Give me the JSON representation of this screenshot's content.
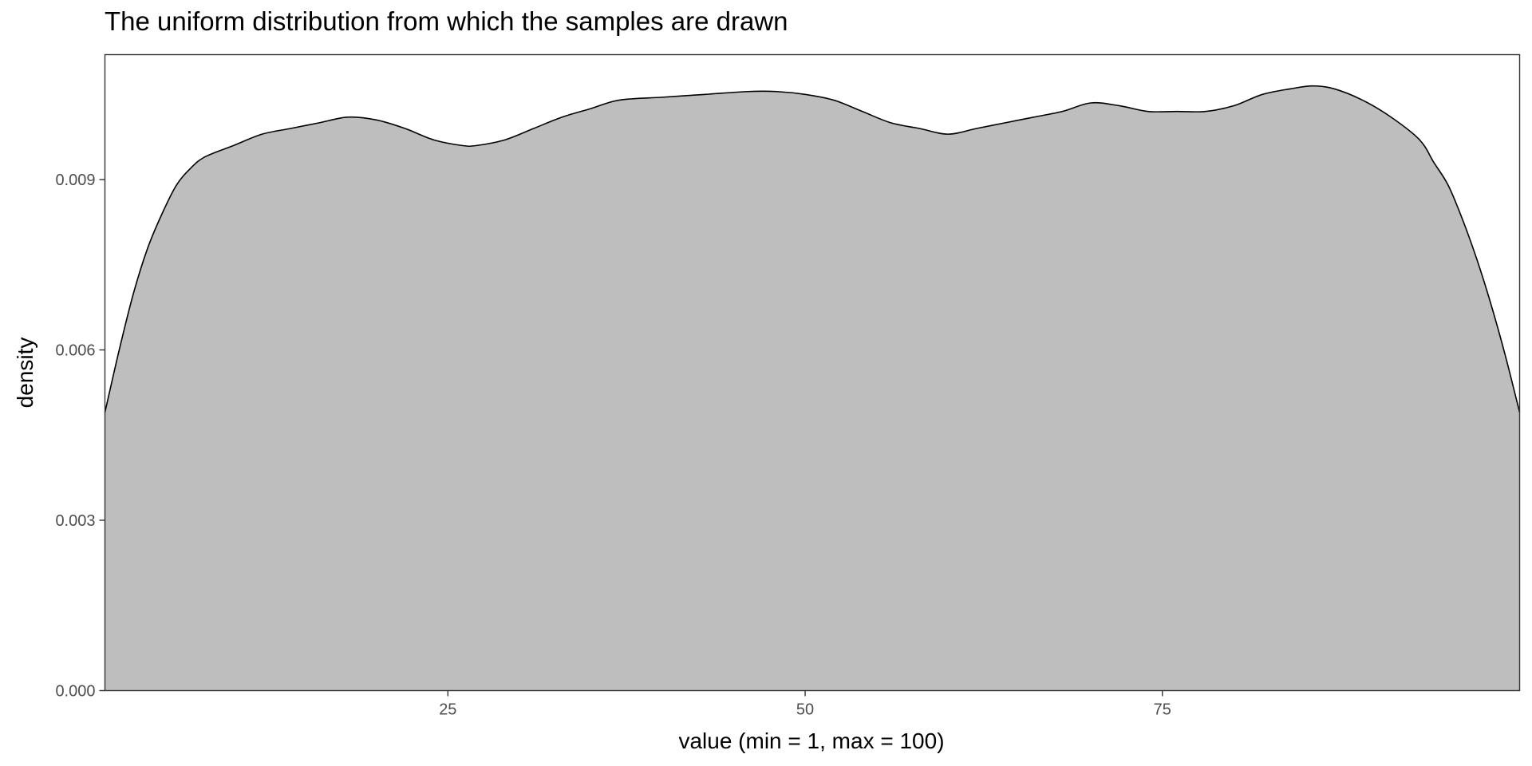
{
  "chart_data": {
    "type": "area",
    "title": "The uniform distribution from which the samples are drawn",
    "xlabel": "value (min = 1, max = 100)",
    "ylabel": "density",
    "xlim": [
      1,
      100
    ],
    "ylim": [
      0,
      0.0112
    ],
    "x_ticks": [
      25,
      50,
      75
    ],
    "x_tick_labels": [
      "25",
      "50",
      "75"
    ],
    "y_ticks": [
      0,
      0.003,
      0.006,
      0.009
    ],
    "y_tick_labels": [
      "0.000",
      "0.003",
      "0.006",
      "0.009"
    ],
    "grid": false,
    "series": [
      {
        "fill": "#bebebe",
        "stroke": "#000000",
        "x": [
          1,
          2,
          3,
          4,
          5,
          6,
          7,
          8,
          10,
          12,
          14,
          16,
          18,
          20,
          22,
          24,
          26,
          27,
          29,
          31,
          33,
          35,
          37,
          40,
          43,
          46,
          48,
          50,
          52,
          54,
          56,
          58,
          60,
          62,
          64,
          66,
          68,
          70,
          72,
          74,
          76,
          78,
          80,
          82,
          84,
          85.5,
          87,
          89,
          91,
          93,
          94,
          95,
          96,
          97,
          98,
          99,
          100
        ],
        "y": [
          0.0049,
          0.006,
          0.007,
          0.0078,
          0.0084,
          0.0089,
          0.0092,
          0.0094,
          0.0096,
          0.0098,
          0.0099,
          0.01,
          0.0101,
          0.01005,
          0.0099,
          0.0097,
          0.0096,
          0.0096,
          0.0097,
          0.0099,
          0.0101,
          0.01025,
          0.0104,
          0.01045,
          0.0105,
          0.01055,
          0.01055,
          0.0105,
          0.0104,
          0.0102,
          0.01,
          0.0099,
          0.0098,
          0.0099,
          0.01,
          0.0101,
          0.0102,
          0.01035,
          0.0103,
          0.0102,
          0.0102,
          0.0102,
          0.0103,
          0.0105,
          0.0106,
          0.01065,
          0.0106,
          0.0104,
          0.0101,
          0.0097,
          0.0093,
          0.0089,
          0.0083,
          0.0076,
          0.0068,
          0.0059,
          0.0049
        ]
      }
    ]
  }
}
